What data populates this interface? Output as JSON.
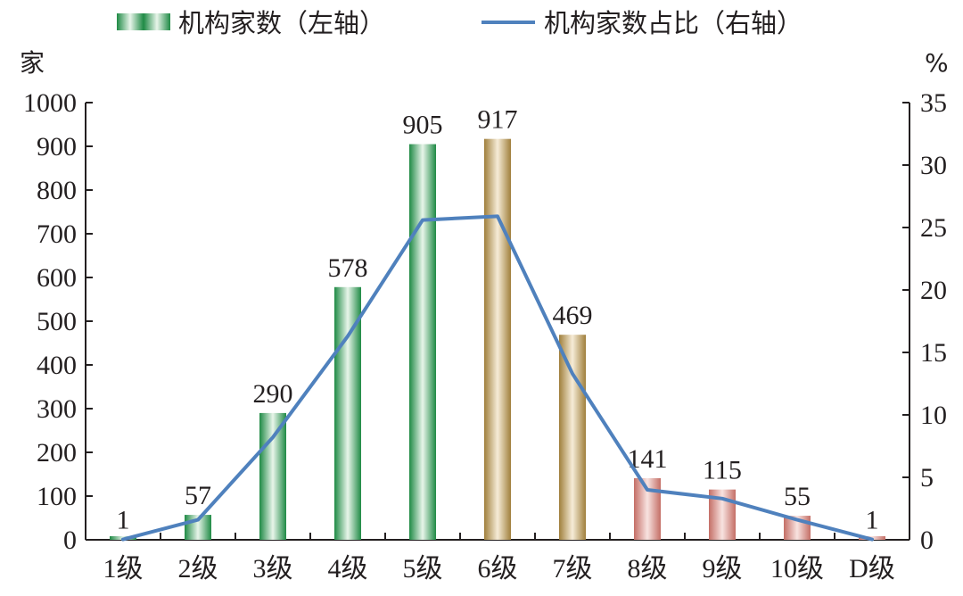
{
  "chart_data": {
    "type": "bar",
    "categories": [
      "1级",
      "2级",
      "3级",
      "4级",
      "5级",
      "6级",
      "7级",
      "8级",
      "9级",
      "10级",
      "D级"
    ],
    "series": [
      {
        "name": "机构家数（左轴）",
        "type": "bar",
        "axis": "left",
        "values": [
          1,
          57,
          290,
          578,
          905,
          917,
          469,
          141,
          115,
          55,
          1
        ],
        "data_labels": [
          "1",
          "57",
          "290",
          "578",
          "905",
          "917",
          "469",
          "141",
          "115",
          "55",
          "1"
        ]
      },
      {
        "name": "机构家数占比（右轴）",
        "type": "line",
        "axis": "right",
        "values": [
          0.03,
          1.6,
          8.2,
          16.3,
          25.6,
          25.9,
          13.3,
          4.0,
          3.3,
          1.6,
          0.03
        ]
      }
    ],
    "ylabel_left": "家",
    "ylabel_right": "%",
    "ylim_left": [
      0,
      1000
    ],
    "ylim_right": [
      0,
      35
    ],
    "yticks_left": [
      "0",
      "100",
      "200",
      "300",
      "400",
      "500",
      "600",
      "700",
      "800",
      "900",
      "1000"
    ],
    "yticks_right": [
      "0",
      "5",
      "10",
      "15",
      "20",
      "25",
      "30",
      "35"
    ],
    "legend_position": "top",
    "grid": false,
    "colors": {
      "bar_group_1": "#2e9a4f",
      "bar_group_2": "#b08f4a",
      "bar_group_3": "#c97c74",
      "line": "#4f81bd",
      "axis": "#231f20"
    },
    "bar_color_groups": [
      1,
      1,
      1,
      1,
      1,
      2,
      2,
      3,
      3,
      3,
      3
    ]
  }
}
